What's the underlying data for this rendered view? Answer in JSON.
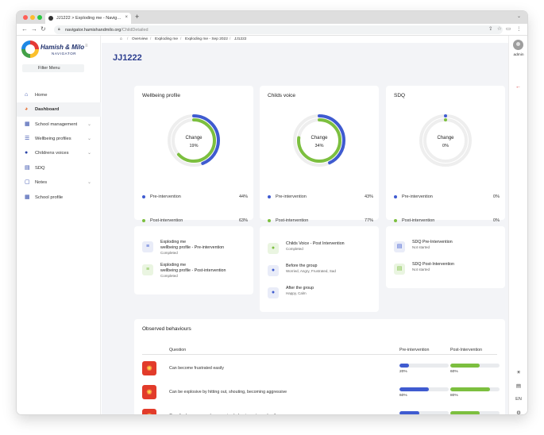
{
  "browser": {
    "tab_title": "JJ1222 > Exploding me - Navig…",
    "tab_close": "×",
    "new_tab": "+",
    "url_host": "navigator.hamishandmilo.org",
    "url_path": "/ChildDetailed",
    "controls": {
      "close": "#ff5f57",
      "minimize": "#febc2e",
      "maximize": "#28c840"
    }
  },
  "sidebar": {
    "brand": "Hamish & Milo",
    "brand_sub": "NAVIGATOR",
    "filter_label": "Filter Menu",
    "items": [
      {
        "label": "Home",
        "icon": "home-icon",
        "glyph": "⌂",
        "active": false,
        "chevron": false
      },
      {
        "label": "Dashboard",
        "icon": "dashboard-icon",
        "glyph": "◕",
        "active": true,
        "chevron": false
      },
      {
        "label": "School management",
        "icon": "school-icon",
        "glyph": "▦",
        "active": false,
        "chevron": true
      },
      {
        "label": "Wellbeing profiles",
        "icon": "profiles-icon",
        "glyph": "☰",
        "active": false,
        "chevron": true
      },
      {
        "label": "Childrens voices",
        "icon": "chat-icon",
        "glyph": "●",
        "active": false,
        "chevron": true
      },
      {
        "label": "SDQ",
        "icon": "document-icon",
        "glyph": "▤",
        "active": false,
        "chevron": false
      },
      {
        "label": "Notes",
        "icon": "notes-icon",
        "glyph": "▢",
        "active": false,
        "chevron": true
      },
      {
        "label": "School profile",
        "icon": "school-profile-icon",
        "glyph": "▦",
        "active": false,
        "chevron": false
      }
    ]
  },
  "breadcrumb": [
    "Overview",
    "Exploding me",
    "Exploding me - Sep 2022",
    "JJ1222"
  ],
  "page_title": "JJ1222",
  "cards": [
    {
      "title": "Wellbeing profile",
      "center_label": "Change",
      "center_value": "19%",
      "pre_label": "Pre-intervention",
      "pre_value": "44%",
      "post_label": "Post-intervention",
      "post_value": "63%",
      "pre_fraction": 0.44,
      "post_fraction": 0.63
    },
    {
      "title": "Childs voice",
      "center_label": "Change",
      "center_value": "34%",
      "pre_label": "Pre-intervention",
      "pre_value": "43%",
      "post_label": "Post-intervention",
      "post_value": "77%",
      "pre_fraction": 0.43,
      "post_fraction": 0.77
    },
    {
      "title": "SDQ",
      "center_label": "Change",
      "center_value": "0%",
      "pre_label": "Pre-intervention",
      "pre_value": "0%",
      "post_label": "Post-intervention",
      "post_value": "0%",
      "pre_fraction": 0,
      "post_fraction": 0
    }
  ],
  "colors": {
    "pre": "#3f5bd0",
    "post": "#7cbf3f",
    "track": "#eeeeee",
    "accent": "#2c3e8f",
    "danger": "#d32f2f"
  },
  "activities": {
    "wellbeing": [
      {
        "title_line1": "Exploding me",
        "title_line2": "wellbeing profile - Pre-intervention",
        "status": "Completed",
        "icon": "sliders-icon",
        "glyph": "≡",
        "tone": "blue"
      },
      {
        "title_line1": "Exploding me",
        "title_line2": "wellbeing profile - Post-intervention",
        "status": "Completed",
        "icon": "sliders-icon",
        "glyph": "≡",
        "tone": "green"
      }
    ],
    "voice": [
      {
        "title_line1": "Childs Voice - Post Intervention",
        "title_line2": "",
        "status": "Completed",
        "icon": "chat-bubble-icon",
        "glyph": "●",
        "tone": "green"
      },
      {
        "title_line1": "Before the group",
        "title_line2": "",
        "status": "Worried, Angry, Frustrated, Sad",
        "icon": "chat-bubble-icon",
        "glyph": "●",
        "tone": "blue"
      },
      {
        "title_line1": "After the group",
        "title_line2": "",
        "status": "Happy, Calm",
        "icon": "chat-bubble-icon",
        "glyph": "●",
        "tone": "blue"
      }
    ],
    "sdq": [
      {
        "title_line1": "SDQ Pre-Intervention",
        "title_line2": "",
        "status": "Not started",
        "icon": "clipboard-icon",
        "glyph": "▤",
        "tone": "blue"
      },
      {
        "title_line1": "SDQ Post-Intervention",
        "title_line2": "",
        "status": "Not started",
        "icon": "clipboard-icon",
        "glyph": "▤",
        "tone": "green"
      }
    ]
  },
  "observed": {
    "title": "Observed behaviours",
    "col_question": "Question",
    "col_pre": "Pre-intervention",
    "col_post": "Post-Intervention",
    "rows": [
      {
        "question": "Can become frustrated easily",
        "pre": 0.2,
        "pre_label": "20%",
        "post": 0.6,
        "post_label": "60%"
      },
      {
        "question": "Can be explosive by hitting out, shouting, becoming aggressive",
        "pre": 0.6,
        "pre_label": "60%",
        "post": 0.8,
        "post_label": "80%"
      },
      {
        "question": "Can display angry and aggressive behaviours towards others",
        "pre": 0.4,
        "pre_label": "40%",
        "post": 0.6,
        "post_label": "60%"
      }
    ]
  },
  "rail": {
    "user": "admin",
    "language": "EN"
  }
}
